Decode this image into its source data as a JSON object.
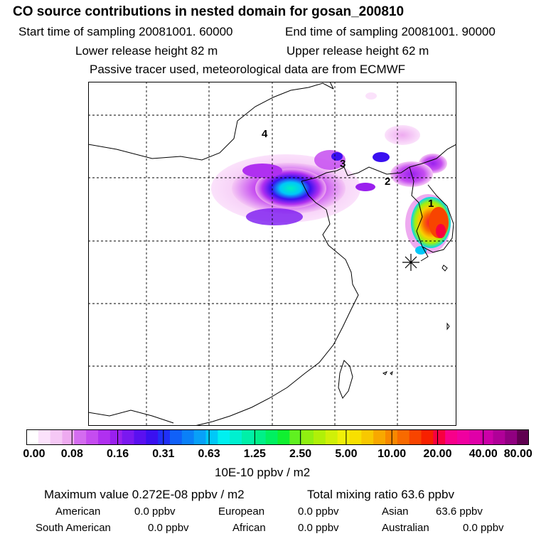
{
  "header": {
    "title": "CO  source contributions in nested domain for gosan_200810",
    "start_time": "Start time of sampling 20081001. 60000",
    "end_time": "End time of sampling 20081001. 90000",
    "lower_release": "Lower release height   82 m",
    "upper_release": "Upper release height   62 m",
    "tracer_note": "Passive tracer used, meteorological data are from ECMWF"
  },
  "map": {
    "cluster_labels": [
      "1",
      "2",
      "3",
      "4"
    ],
    "receptor_marker": "gosan-star"
  },
  "colorbar": {
    "ticks": [
      "0.00",
      "0.08",
      "0.16",
      "0.31",
      "0.63",
      "1.25",
      "2.50",
      "5.00",
      "10.00",
      "20.00",
      "40.00",
      "80.00"
    ],
    "colors": [
      "#ffffff",
      "#fbe2fb",
      "#f5c8f5",
      "#eeaaf0",
      "#d46cf0",
      "#c54cf0",
      "#b030f0",
      "#9a20ee",
      "#7a18f0",
      "#5a10f0",
      "#3a10f0",
      "#2030f8",
      "#1060f8",
      "#0a80f8",
      "#08a0f8",
      "#00c8f8",
      "#00f0f0",
      "#00f0d0",
      "#00f0a8",
      "#00f088",
      "#00f060",
      "#10f030",
      "#60f020",
      "#90f010",
      "#b0f008",
      "#d0f008",
      "#f0f008",
      "#f8e000",
      "#f8c800",
      "#f8a800",
      "#f88800",
      "#f86a00",
      "#f84400",
      "#f82000",
      "#f80040",
      "#f8008a",
      "#f000a0",
      "#e000a8",
      "#cc00a8",
      "#b00098",
      "#900080",
      "#600050"
    ],
    "units": "10E-10 ppbv / m2"
  },
  "summary": {
    "max_value": "Maximum value  0.272E-08 ppbv / m2",
    "total_mixing": "Total mixing ratio       63.6 ppbv",
    "regions": [
      {
        "name": "American",
        "value": "0.0 ppbv"
      },
      {
        "name": "European",
        "value": "0.0 ppbv"
      },
      {
        "name": "Asian",
        "value": "63.6 ppbv"
      },
      {
        "name": "South American",
        "value": "0.0 ppbv"
      },
      {
        "name": "African",
        "value": "0.0 ppbv"
      },
      {
        "name": "Australian",
        "value": "0.0 ppbv"
      }
    ]
  }
}
